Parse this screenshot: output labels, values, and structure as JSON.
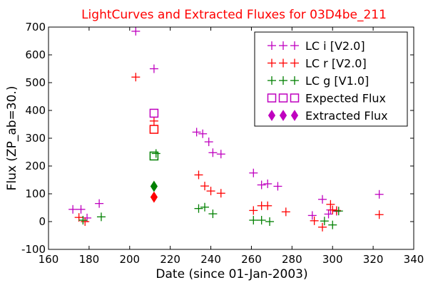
{
  "chart_data": {
    "type": "scatter",
    "title": "LightCurves and Extracted Fluxes for 03D4be_211",
    "xlabel": "Date (since 01-Jan-2003)",
    "ylabel": "Flux (ZP_ab=30.)",
    "xlim": [
      160,
      340
    ],
    "ylim": [
      -100,
      700
    ],
    "xticks": [
      160,
      180,
      200,
      220,
      240,
      260,
      280,
      300,
      320,
      340
    ],
    "yticks": [
      -100,
      0,
      100,
      200,
      300,
      400,
      500,
      600,
      700
    ],
    "legend_position": "upper-right",
    "grid": false,
    "series": [
      {
        "name": "LC i [V2.0]",
        "marker": "plus",
        "color": "#bf00bf",
        "points": [
          [
            172,
            44
          ],
          [
            176,
            44
          ],
          [
            179,
            13
          ],
          [
            185,
            65
          ],
          [
            203,
            685
          ],
          [
            212,
            550
          ],
          [
            233,
            322
          ],
          [
            236,
            316
          ],
          [
            239,
            287
          ],
          [
            241,
            248
          ],
          [
            245,
            243
          ],
          [
            261,
            175
          ],
          [
            265,
            132
          ],
          [
            268,
            136
          ],
          [
            273,
            127
          ],
          [
            290,
            22
          ],
          [
            295,
            80
          ],
          [
            298,
            27
          ],
          [
            299,
            42
          ],
          [
            302,
            37
          ],
          [
            323,
            98
          ]
        ]
      },
      {
        "name": "LC r [V2.0]",
        "marker": "plus",
        "color": "#ff0000",
        "points": [
          [
            175,
            15
          ],
          [
            178,
            0
          ],
          [
            203,
            520
          ],
          [
            212,
            362
          ],
          [
            234,
            168
          ],
          [
            237,
            128
          ],
          [
            240,
            110
          ],
          [
            245,
            102
          ],
          [
            261,
            40
          ],
          [
            265,
            57
          ],
          [
            268,
            57
          ],
          [
            277,
            35
          ],
          [
            291,
            3
          ],
          [
            295,
            -20
          ],
          [
            299,
            62
          ],
          [
            300,
            42
          ],
          [
            302,
            40
          ],
          [
            323,
            25
          ]
        ]
      },
      {
        "name": "LC g [V1.0]",
        "marker": "plus",
        "color": "#008000",
        "points": [
          [
            177,
            5
          ],
          [
            186,
            17
          ],
          [
            213,
            245
          ],
          [
            234,
            47
          ],
          [
            237,
            52
          ],
          [
            241,
            28
          ],
          [
            261,
            5
          ],
          [
            265,
            5
          ],
          [
            269,
            0
          ],
          [
            296,
            2
          ],
          [
            300,
            -12
          ],
          [
            303,
            38
          ]
        ]
      },
      {
        "name": "Expected Flux",
        "marker": "square",
        "points": [
          [
            212,
            390,
            "#bf00bf"
          ],
          [
            212,
            332,
            "#ff0000"
          ],
          [
            212,
            236,
            "#008000"
          ]
        ]
      },
      {
        "name": "Extracted Flux",
        "marker": "diamond",
        "points": [
          [
            212,
            127,
            "#008000"
          ],
          [
            212,
            88,
            "#ff0000"
          ]
        ]
      }
    ],
    "legend": [
      {
        "label": "LC i [V2.0]",
        "marker": "plus",
        "color": "#bf00bf"
      },
      {
        "label": "LC r [V2.0]",
        "marker": "plus",
        "color": "#ff0000"
      },
      {
        "label": "LC g [V1.0]",
        "marker": "plus",
        "color": "#008000"
      },
      {
        "label": "Expected Flux",
        "marker": "square",
        "color": "#bf00bf"
      },
      {
        "label": "Extracted Flux",
        "marker": "diamond",
        "color": "#bf00bf"
      }
    ]
  }
}
